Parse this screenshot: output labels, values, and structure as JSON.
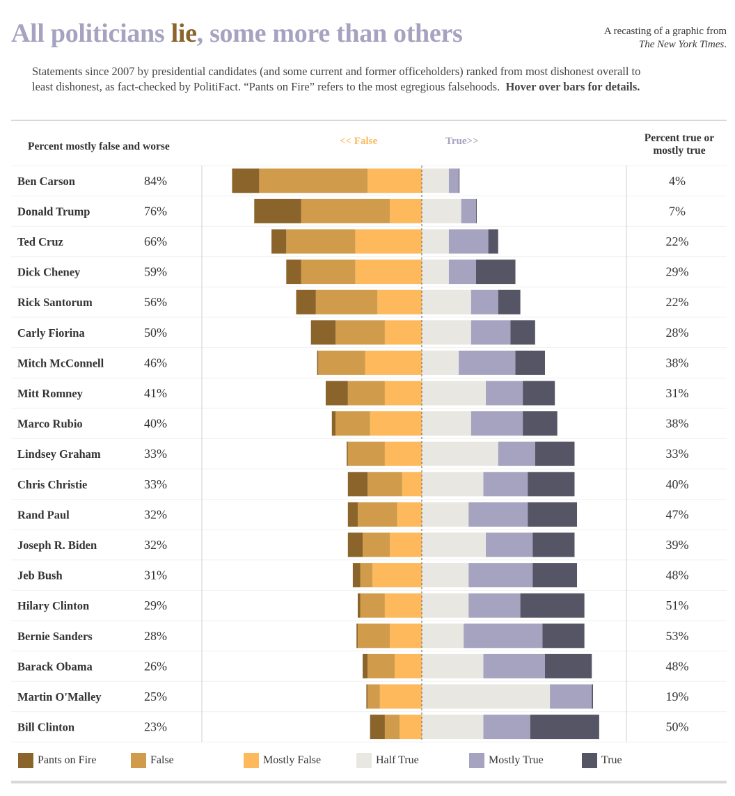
{
  "header": {
    "title_part1": "All politicians ",
    "title_accent": "lie",
    "title_part2": ", some more than others",
    "source_line1": "A recasting of a graphic from",
    "source_pub": "The New York Times",
    "source_end": ".",
    "subtitle": "Statements since 2007 by presidential candidates (and some current and former officeholders) ranked from most dishonest overall to least dishonest, as fact-checked by PolitiFact. “Pants on Fire” refers to the most egregious falsehoods.",
    "subtitle_bold": "Hover over bars for details."
  },
  "column_headers": {
    "left": "Percent mostly false and worse",
    "false_dir": "<< False",
    "true_dir": "True>>",
    "right_line1": "Percent true or",
    "right_line2": "mostly true"
  },
  "colors": {
    "pants_on_fire": "#8b642c",
    "false": "#d09c4c",
    "mostly_false": "#fdb95b",
    "half_true": "#e8e7e1",
    "mostly_true": "#a6a3c0",
    "true": "#565565"
  },
  "chart_data": {
    "type": "bar",
    "orientation": "horizontal",
    "stacked": "diverging",
    "unit": "percent",
    "categories": [
      "Ben Carson",
      "Donald Trump",
      "Ted Cruz",
      "Dick Cheney",
      "Rick Santorum",
      "Carly Fiorina",
      "Mitch McConnell",
      "Mitt Romney",
      "Marco Rubio",
      "Lindsey Graham",
      "Chris Christie",
      "Rand Paul",
      "Joseph R. Biden",
      "Jeb Bush",
      "Hilary Clinton",
      "Bernie Sanders",
      "Barack Obama",
      "Martin O'Malley",
      "Bill Clinton"
    ],
    "left_labels": [
      "84%",
      "76%",
      "66%",
      "59%",
      "56%",
      "50%",
      "46%",
      "41%",
      "40%",
      "33%",
      "33%",
      "32%",
      "32%",
      "31%",
      "29%",
      "28%",
      "26%",
      "25%",
      "23%"
    ],
    "right_labels": [
      "4%",
      "7%",
      "22%",
      "29%",
      "22%",
      "28%",
      "38%",
      "31%",
      "38%",
      "33%",
      "40%",
      "47%",
      "39%",
      "48%",
      "51%",
      "53%",
      "48%",
      "19%",
      "50%"
    ],
    "series": [
      {
        "name": "Pants on Fire",
        "side": "false",
        "values": [
          11,
          19,
          6,
          6,
          8,
          10,
          0.5,
          9,
          1.5,
          0.5,
          8,
          4,
          6,
          3,
          1,
          0.5,
          2,
          0.5,
          6
        ]
      },
      {
        "name": "False",
        "side": "false",
        "values": [
          44,
          36,
          28,
          22,
          25,
          20,
          19,
          15,
          14,
          15,
          14,
          16,
          11,
          5,
          10,
          13,
          11,
          5,
          6
        ]
      },
      {
        "name": "Mostly False",
        "side": "false",
        "values": [
          22,
          13,
          27,
          27,
          18,
          15,
          23,
          15,
          21,
          15,
          8,
          10,
          13,
          20,
          15,
          13,
          11,
          17,
          9
        ]
      },
      {
        "name": "Half True",
        "side": "true",
        "values": [
          11,
          16,
          11,
          11,
          20,
          20,
          15,
          26,
          20,
          31,
          25,
          19,
          26,
          19,
          19,
          17,
          25,
          52,
          25
        ]
      },
      {
        "name": "Mostly True",
        "side": "true",
        "values": [
          4,
          6,
          16,
          11,
          11,
          16,
          23,
          15,
          21,
          15,
          18,
          24,
          19,
          26,
          21,
          32,
          25,
          17,
          19
        ]
      },
      {
        "name": "True",
        "side": "true",
        "values": [
          0.3,
          0.3,
          4,
          16,
          9,
          10,
          12,
          13,
          14,
          16,
          19,
          20,
          17,
          18,
          26,
          17,
          19,
          0.5,
          28
        ]
      }
    ]
  },
  "legend": {
    "items": [
      {
        "label": "Pants on Fire",
        "color": "#8b642c"
      },
      {
        "label": "False",
        "color": "#d09c4c"
      },
      {
        "label": "Mostly False",
        "color": "#fdb95b"
      },
      {
        "label": "Half True",
        "color": "#e8e7e1"
      },
      {
        "label": "Mostly True",
        "color": "#a6a3c0"
      },
      {
        "label": "True",
        "color": "#565565"
      }
    ]
  }
}
